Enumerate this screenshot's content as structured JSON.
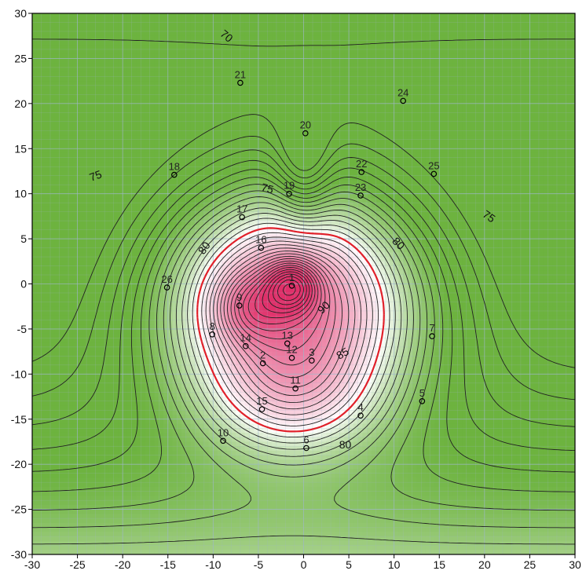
{
  "chart_data": {
    "type": "heatmap",
    "title": "",
    "xlabel": "",
    "ylabel": "",
    "xlim": [
      -30,
      30
    ],
    "ylim": [
      -30,
      30
    ],
    "x_ticks": [
      -30,
      -25,
      -20,
      -15,
      -10,
      -5,
      0,
      5,
      10,
      15,
      20,
      25,
      30
    ],
    "y_ticks": [
      -30,
      -25,
      -20,
      -15,
      -10,
      -5,
      0,
      5,
      10,
      15,
      20,
      25,
      30
    ],
    "grid": true,
    "colors": {
      "low": "#6db33f",
      "mid": "#ffffff",
      "high": "#e0306a",
      "highlight_contour": "#e0202a",
      "contour": "#222222",
      "grid": "#9fb7c9"
    },
    "highlight_level": 80,
    "contour_labels": [
      {
        "text": "70",
        "x": -8.5,
        "y": 27.5,
        "rotation": 40
      },
      {
        "text": "75",
        "x": -23,
        "y": 12,
        "rotation": -20
      },
      {
        "text": "75",
        "x": -4,
        "y": 10.6,
        "rotation": 15
      },
      {
        "text": "75",
        "x": 20.5,
        "y": 7.5,
        "rotation": 35
      },
      {
        "text": "80",
        "x": -11,
        "y": 4,
        "rotation": -55
      },
      {
        "text": "80",
        "x": 10.5,
        "y": 4.5,
        "rotation": 45
      },
      {
        "text": "80",
        "x": 4.6,
        "y": -17.8,
        "rotation": 0
      },
      {
        "text": "85",
        "x": 4.3,
        "y": -7.7,
        "rotation": -30
      },
      {
        "text": "90",
        "x": 2.2,
        "y": -2.6,
        "rotation": -45
      }
    ],
    "stations": [
      {
        "label": "1",
        "x": -1.3,
        "y": -0.2
      },
      {
        "label": "2",
        "x": -4.5,
        "y": -8.8
      },
      {
        "label": "3",
        "x": 0.9,
        "y": -8.5
      },
      {
        "label": "4",
        "x": 6.3,
        "y": -14.6
      },
      {
        "label": "5",
        "x": 13.1,
        "y": -13.0
      },
      {
        "label": "6",
        "x": 0.3,
        "y": -18.2
      },
      {
        "label": "7",
        "x": 14.2,
        "y": -5.8
      },
      {
        "label": "8",
        "x": -10.1,
        "y": -5.6
      },
      {
        "label": "9",
        "x": -7.1,
        "y": -2.4
      },
      {
        "label": "10",
        "x": -8.9,
        "y": -17.4
      },
      {
        "label": "11",
        "x": -0.9,
        "y": -11.6
      },
      {
        "label": "12",
        "x": -1.3,
        "y": -8.2
      },
      {
        "label": "13",
        "x": -1.8,
        "y": -6.6
      },
      {
        "label": "14",
        "x": -6.4,
        "y": -6.9
      },
      {
        "label": "15",
        "x": -4.6,
        "y": -13.9
      },
      {
        "label": "16",
        "x": -4.7,
        "y": 4.0
      },
      {
        "label": "17",
        "x": -6.8,
        "y": 7.4
      },
      {
        "label": "18",
        "x": -14.3,
        "y": 12.1
      },
      {
        "label": "19",
        "x": -1.6,
        "y": 10.0
      },
      {
        "label": "20",
        "x": 0.2,
        "y": 16.7
      },
      {
        "label": "21",
        "x": -7.0,
        "y": 22.3
      },
      {
        "label": "22",
        "x": 6.4,
        "y": 12.4
      },
      {
        "label": "23",
        "x": 6.3,
        "y": 9.8
      },
      {
        "label": "24",
        "x": 11.0,
        "y": 20.3
      },
      {
        "label": "25",
        "x": 14.4,
        "y": 12.2
      },
      {
        "label": "26",
        "x": -15.1,
        "y": -0.4
      }
    ]
  }
}
